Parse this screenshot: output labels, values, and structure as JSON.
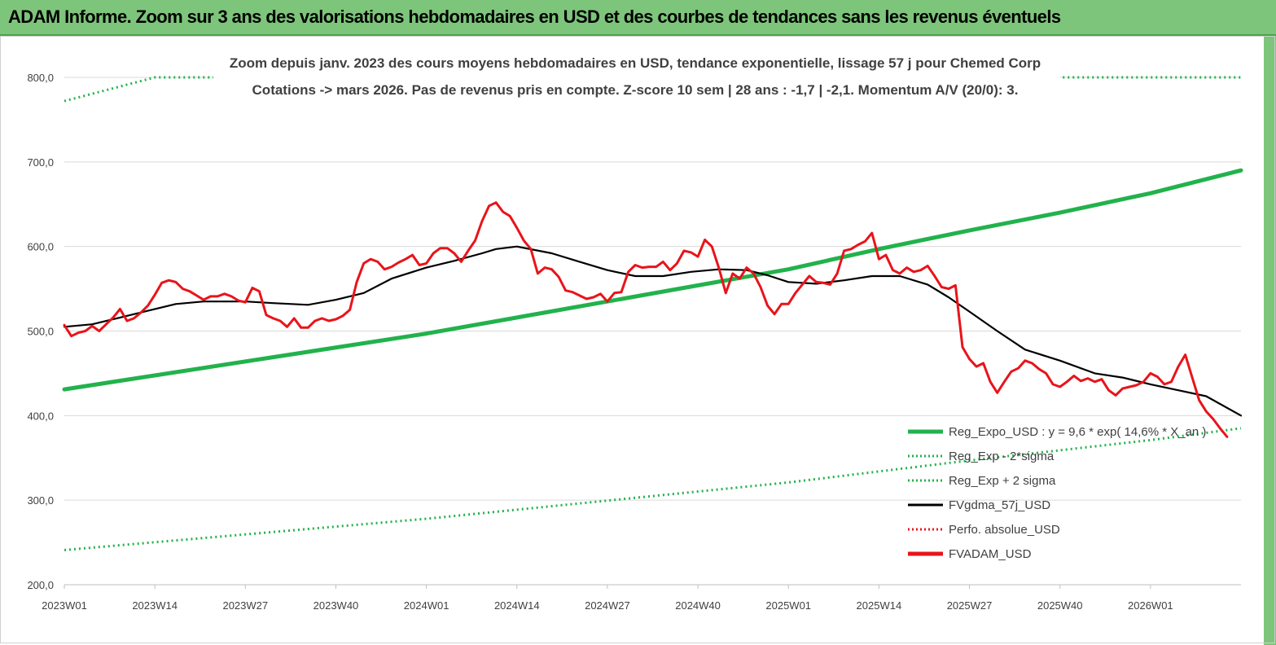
{
  "banner": {
    "title": "ADAM Informe. Zoom sur 3 ans des valorisations hebdomadaires en USD et des courbes de tendances sans les revenus éventuels"
  },
  "colors": {
    "banner": "#7dc57a",
    "trend": "#22b24c",
    "smooth": "#000000",
    "price": "#e8141a",
    "perfo": "#e8141a"
  },
  "chart_data": {
    "type": "line",
    "subtitle_line1": "Zoom depuis janv. 2023 des cours moyens hebdomadaires en USD, tendance exponentielle, lissage 57 j pour Chemed Corp",
    "subtitle_line2": "Cotations -> mars 2026. Pas de revenus pris en  compte. Z-score 10 sem  | 28 ans : -1,7 | -2,1. Momentum A/V (20/0): 3.",
    "ylim": [
      200,
      800
    ],
    "y_ticks": [
      "200,0",
      "300,0",
      "400,0",
      "500,0",
      "600,0",
      "700,0",
      "800,0"
    ],
    "y_tick_values": [
      200,
      300,
      400,
      500,
      600,
      700,
      800
    ],
    "x_ticks": [
      "2023W01",
      "2023W14",
      "2023W27",
      "2023W40",
      "2024W01",
      "2024W14",
      "2024W27",
      "2024W40",
      "2025W01",
      "2025W14",
      "2025W27",
      "2025W40",
      "2026W01"
    ],
    "x_tick_index": [
      0,
      13,
      26,
      39,
      52,
      65,
      78,
      91,
      104,
      117,
      130,
      143,
      156
    ],
    "n_weeks": 170,
    "grid": true,
    "legend_position": "bottom-right",
    "legend": [
      {
        "label": "Reg_Expo_USD : y = 9,6 * exp( 14,6% * X_an )",
        "style": "solid-thick",
        "color": "#22b24c"
      },
      {
        "label": "Reg_Exp - 2*sigma",
        "style": "dotted",
        "color": "#22b24c"
      },
      {
        "label": "Reg_Exp + 2 sigma",
        "style": "dotted",
        "color": "#22b24c"
      },
      {
        "label": "FVgdma_57j_USD",
        "style": "solid",
        "color": "#000000"
      },
      {
        "label": "Perfo. absolue_USD",
        "style": "dotted",
        "color": "#e8141a"
      },
      {
        "label": "FVADAM_USD",
        "style": "solid-thick",
        "color": "#e8141a"
      }
    ],
    "series": [
      {
        "name": "Reg_Expo_USD : y = 9,6 * exp( 14,6% * X_an )",
        "key": "trend",
        "points": [
          [
            0,
            431
          ],
          [
            52,
            497
          ],
          [
            104,
            573
          ],
          [
            117,
            597
          ],
          [
            130,
            619
          ],
          [
            143,
            640
          ],
          [
            156,
            663
          ],
          [
            169,
            690
          ]
        ]
      },
      {
        "name": "Reg_Exp - 2*sigma",
        "key": "lower",
        "points": [
          [
            0,
            241
          ],
          [
            52,
            278
          ],
          [
            104,
            321
          ],
          [
            130,
            347
          ],
          [
            156,
            371
          ],
          [
            169,
            385
          ]
        ]
      },
      {
        "name": "Reg_Exp + 2 sigma",
        "key": "upper",
        "points": [
          [
            0,
            772
          ],
          [
            13,
            800
          ],
          [
            169,
            800
          ]
        ]
      },
      {
        "name": "FVgdma_57j_USD",
        "key": "smooth",
        "points": [
          [
            0,
            505
          ],
          [
            4,
            508
          ],
          [
            8,
            516
          ],
          [
            12,
            524
          ],
          [
            16,
            532
          ],
          [
            20,
            535
          ],
          [
            26,
            535
          ],
          [
            30,
            533
          ],
          [
            35,
            531
          ],
          [
            39,
            537
          ],
          [
            43,
            545
          ],
          [
            47,
            562
          ],
          [
            52,
            575
          ],
          [
            56,
            583
          ],
          [
            60,
            592
          ],
          [
            62,
            597
          ],
          [
            65,
            600
          ],
          [
            70,
            592
          ],
          [
            74,
            582
          ],
          [
            78,
            572
          ],
          [
            82,
            565
          ],
          [
            86,
            565
          ],
          [
            90,
            570
          ],
          [
            94,
            573
          ],
          [
            98,
            572
          ],
          [
            101,
            566
          ],
          [
            104,
            558
          ],
          [
            108,
            556
          ],
          [
            112,
            560
          ],
          [
            116,
            565
          ],
          [
            120,
            565
          ],
          [
            124,
            555
          ],
          [
            127,
            540
          ],
          [
            130,
            523
          ],
          [
            134,
            500
          ],
          [
            138,
            478
          ],
          [
            143,
            465
          ],
          [
            148,
            450
          ],
          [
            152,
            445
          ],
          [
            156,
            437
          ],
          [
            160,
            430
          ],
          [
            164,
            423
          ],
          [
            169,
            400
          ]
        ]
      },
      {
        "name": "FVADAM_USD",
        "key": "price",
        "points": [
          [
            0,
            507
          ],
          [
            1,
            494
          ],
          [
            2,
            498
          ],
          [
            3,
            500
          ],
          [
            4,
            506
          ],
          [
            5,
            500
          ],
          [
            6,
            508
          ],
          [
            7,
            516
          ],
          [
            8,
            526
          ],
          [
            9,
            512
          ],
          [
            10,
            515
          ],
          [
            11,
            522
          ],
          [
            12,
            530
          ],
          [
            13,
            543
          ],
          [
            14,
            557
          ],
          [
            15,
            560
          ],
          [
            16,
            558
          ],
          [
            17,
            550
          ],
          [
            18,
            547
          ],
          [
            19,
            542
          ],
          [
            20,
            537
          ],
          [
            21,
            541
          ],
          [
            22,
            541
          ],
          [
            23,
            544
          ],
          [
            24,
            541
          ],
          [
            25,
            536
          ],
          [
            26,
            534
          ],
          [
            27,
            551
          ],
          [
            28,
            547
          ],
          [
            29,
            519
          ],
          [
            30,
            515
          ],
          [
            31,
            512
          ],
          [
            32,
            505
          ],
          [
            33,
            515
          ],
          [
            34,
            504
          ],
          [
            35,
            504
          ],
          [
            36,
            512
          ],
          [
            37,
            515
          ],
          [
            38,
            512
          ],
          [
            39,
            514
          ],
          [
            40,
            518
          ],
          [
            41,
            525
          ],
          [
            42,
            558
          ],
          [
            43,
            580
          ],
          [
            44,
            585
          ],
          [
            45,
            582
          ],
          [
            46,
            573
          ],
          [
            47,
            576
          ],
          [
            48,
            581
          ],
          [
            49,
            585
          ],
          [
            50,
            590
          ],
          [
            51,
            578
          ],
          [
            52,
            580
          ],
          [
            53,
            592
          ],
          [
            54,
            598
          ],
          [
            55,
            598
          ],
          [
            56,
            592
          ],
          [
            57,
            582
          ],
          [
            58,
            595
          ],
          [
            59,
            607
          ],
          [
            60,
            630
          ],
          [
            61,
            648
          ],
          [
            62,
            652
          ],
          [
            63,
            641
          ],
          [
            64,
            636
          ],
          [
            65,
            622
          ],
          [
            66,
            607
          ],
          [
            67,
            597
          ],
          [
            68,
            568
          ],
          [
            69,
            575
          ],
          [
            70,
            573
          ],
          [
            71,
            564
          ],
          [
            72,
            548
          ],
          [
            73,
            546
          ],
          [
            74,
            542
          ],
          [
            75,
            538
          ],
          [
            76,
            540
          ],
          [
            77,
            544
          ],
          [
            78,
            535
          ],
          [
            79,
            545
          ],
          [
            80,
            546
          ],
          [
            81,
            570
          ],
          [
            82,
            578
          ],
          [
            83,
            575
          ],
          [
            84,
            576
          ],
          [
            85,
            576
          ],
          [
            86,
            582
          ],
          [
            87,
            572
          ],
          [
            88,
            580
          ],
          [
            89,
            595
          ],
          [
            90,
            593
          ],
          [
            91,
            588
          ],
          [
            92,
            608
          ],
          [
            93,
            600
          ],
          [
            94,
            575
          ],
          [
            95,
            545
          ],
          [
            96,
            568
          ],
          [
            97,
            562
          ],
          [
            98,
            575
          ],
          [
            99,
            568
          ],
          [
            100,
            552
          ],
          [
            101,
            530
          ],
          [
            102,
            520
          ],
          [
            103,
            532
          ],
          [
            104,
            532
          ],
          [
            105,
            545
          ],
          [
            106,
            555
          ],
          [
            107,
            565
          ],
          [
            108,
            558
          ],
          [
            109,
            557
          ],
          [
            110,
            555
          ],
          [
            111,
            568
          ],
          [
            112,
            595
          ],
          [
            113,
            597
          ],
          [
            114,
            602
          ],
          [
            115,
            606
          ],
          [
            116,
            616
          ],
          [
            117,
            585
          ],
          [
            118,
            590
          ],
          [
            119,
            572
          ],
          [
            120,
            568
          ],
          [
            121,
            575
          ],
          [
            122,
            570
          ],
          [
            123,
            572
          ],
          [
            124,
            577
          ],
          [
            125,
            565
          ],
          [
            126,
            552
          ],
          [
            127,
            550
          ],
          [
            128,
            554
          ],
          [
            129,
            481
          ],
          [
            130,
            467
          ],
          [
            131,
            458
          ],
          [
            132,
            462
          ],
          [
            133,
            440
          ],
          [
            134,
            427
          ],
          [
            135,
            440
          ],
          [
            136,
            452
          ],
          [
            137,
            456
          ],
          [
            138,
            465
          ],
          [
            139,
            462
          ],
          [
            140,
            455
          ],
          [
            141,
            450
          ],
          [
            142,
            437
          ],
          [
            143,
            434
          ],
          [
            144,
            440
          ],
          [
            145,
            447
          ],
          [
            146,
            441
          ],
          [
            147,
            444
          ],
          [
            148,
            440
          ],
          [
            149,
            443
          ],
          [
            150,
            430
          ],
          [
            151,
            424
          ],
          [
            152,
            432
          ],
          [
            153,
            434
          ],
          [
            154,
            436
          ],
          [
            155,
            440
          ],
          [
            156,
            450
          ],
          [
            157,
            446
          ],
          [
            158,
            437
          ],
          [
            159,
            440
          ],
          [
            160,
            458
          ],
          [
            161,
            472
          ],
          [
            162,
            445
          ],
          [
            163,
            418
          ],
          [
            164,
            405
          ],
          [
            165,
            396
          ],
          [
            166,
            385
          ],
          [
            167,
            375
          ]
        ]
      }
    ]
  }
}
